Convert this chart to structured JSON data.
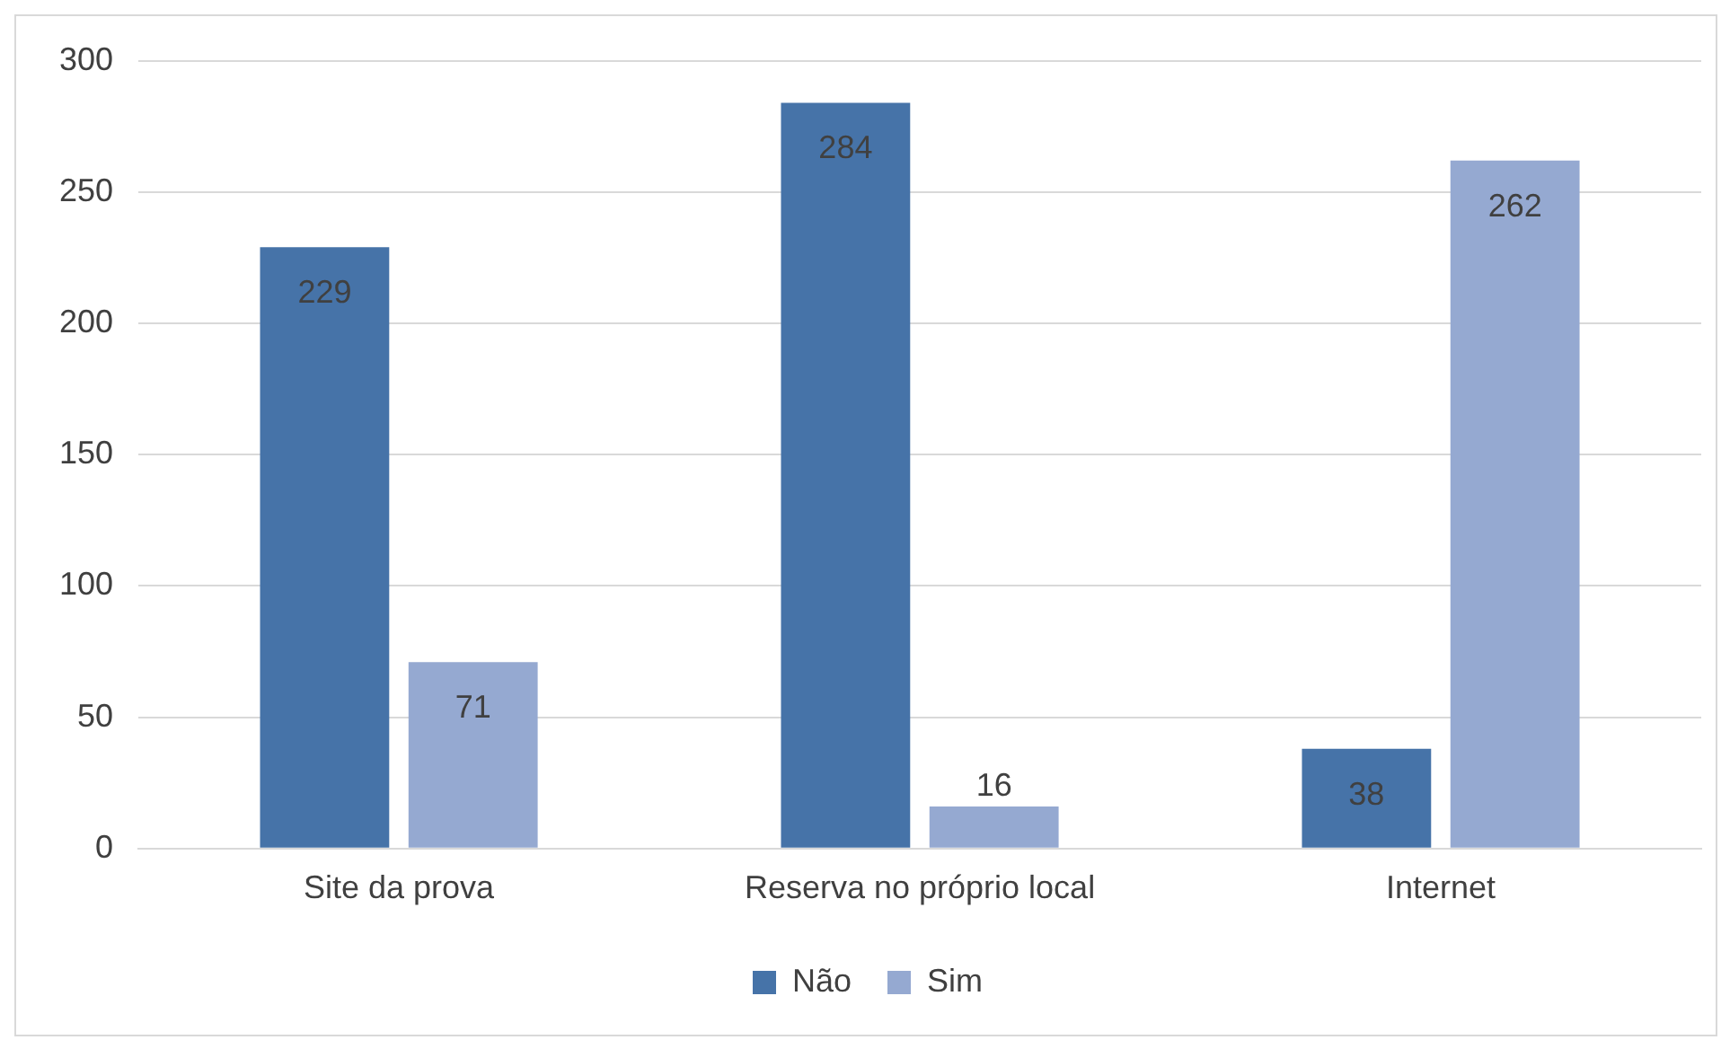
{
  "chart_data": {
    "type": "bar",
    "categories": [
      "Site da prova",
      "Reserva no próprio local",
      "Internet"
    ],
    "series": [
      {
        "name": "Não",
        "color": "#4673a8",
        "values": [
          229,
          284,
          38
        ]
      },
      {
        "name": "Sim",
        "color": "#95a9d1",
        "values": [
          71,
          16,
          262
        ]
      }
    ],
    "ylim": [
      0,
      300
    ],
    "yticks": [
      0,
      50,
      100,
      150,
      200,
      250,
      300
    ],
    "grid": "y",
    "legend": "bottom",
    "data_labels": true
  }
}
